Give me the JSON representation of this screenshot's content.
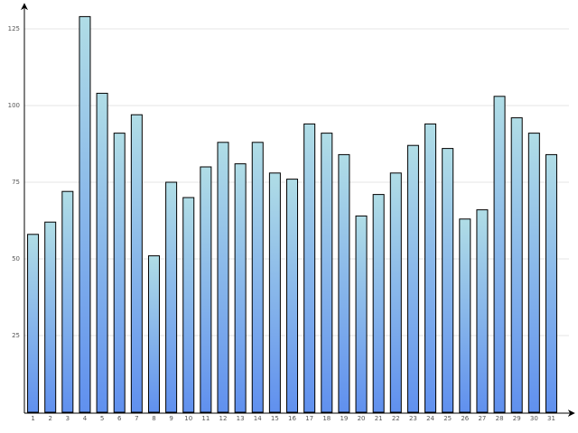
{
  "chart_data": {
    "type": "bar",
    "categories": [
      "1",
      "2",
      "3",
      "4",
      "5",
      "6",
      "7",
      "8",
      "9",
      "10",
      "11",
      "12",
      "13",
      "14",
      "15",
      "16",
      "17",
      "18",
      "19",
      "20",
      "21",
      "22",
      "23",
      "24",
      "25",
      "26",
      "27",
      "28",
      "29",
      "30",
      "31"
    ],
    "values": [
      58,
      62,
      72,
      129,
      104,
      91,
      97,
      51,
      75,
      70,
      80,
      88,
      81,
      88,
      78,
      76,
      94,
      91,
      84,
      64,
      71,
      78,
      87,
      94,
      86,
      63,
      66,
      103,
      96,
      91,
      84
    ],
    "gradient": [
      "#b0dde6",
      "#6090ee"
    ],
    "ylim": [
      0,
      133
    ],
    "yticks": [
      25,
      50,
      75,
      100,
      125
    ],
    "grid": true
  }
}
